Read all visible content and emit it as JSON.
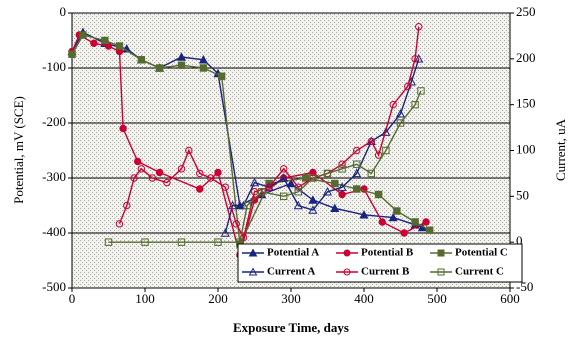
{
  "chart_data": {
    "type": "line",
    "xlabel": "Exposure Time, days",
    "ylabel": "Potential, mV (SCE)",
    "y2label": "Current, uA",
    "xlim": [
      0,
      600
    ],
    "xticks": [
      0,
      100,
      200,
      300,
      400,
      500,
      600
    ],
    "ylim": [
      -500,
      0
    ],
    "yticks": [
      -500,
      -400,
      -300,
      -200,
      -100,
      0
    ],
    "y2lim": [
      -50,
      250
    ],
    "y2ticks": [
      -50,
      0,
      50,
      100,
      150,
      200,
      250
    ],
    "grid": true,
    "legend": "lower right",
    "series": [
      {
        "name": "Potential A",
        "color": "#1a237e",
        "marker": "triangle",
        "filled": true,
        "x": [
          0,
          15,
          45,
          75,
          95,
          120,
          150,
          180,
          200,
          230,
          260,
          300,
          330,
          360,
          400,
          440,
          470,
          480
        ],
        "values": [
          -70,
          -35,
          -55,
          -65,
          -85,
          -100,
          -80,
          -85,
          -110,
          -350,
          -330,
          -310,
          -340,
          -355,
          -367,
          -372,
          -385,
          -390
        ]
      },
      {
        "name": "Potential B",
        "color": "#cc0033",
        "marker": "circle",
        "filled": true,
        "x": [
          0,
          10,
          30,
          50,
          65,
          70,
          90,
          120,
          175,
          200,
          230,
          250,
          290,
          330,
          370,
          400,
          425,
          455,
          485
        ],
        "values": [
          -70,
          -40,
          -55,
          -60,
          -70,
          -210,
          -270,
          -290,
          -320,
          -290,
          -440,
          -340,
          -300,
          -290,
          -330,
          -320,
          -380,
          -400,
          -380
        ]
      },
      {
        "name": "Potential C",
        "color": "#556b2f",
        "marker": "square",
        "filled": true,
        "x": [
          0,
          15,
          45,
          65,
          95,
          120,
          150,
          180,
          205,
          230,
          270,
          320,
          360,
          390,
          420,
          445,
          470,
          490
        ],
        "values": [
          -75,
          -40,
          -50,
          -60,
          -85,
          -100,
          -95,
          -100,
          -115,
          -420,
          -310,
          -300,
          -310,
          -320,
          -330,
          -360,
          -380,
          -395
        ]
      },
      {
        "name": "Current A",
        "color": "#1a237e",
        "marker": "triangle",
        "filled": false,
        "axis": "y2",
        "x": [
          210,
          220,
          235,
          250,
          270,
          290,
          310,
          330,
          350,
          370,
          390,
          410,
          430,
          450,
          465,
          475
        ],
        "values": [
          10,
          40,
          40,
          65,
          60,
          70,
          40,
          35,
          55,
          60,
          75,
          110,
          120,
          140,
          175,
          200
        ]
      },
      {
        "name": "Current B",
        "color": "#cc0033",
        "marker": "circle",
        "filled": false,
        "axis": "y2",
        "x": [
          65,
          75,
          85,
          95,
          110,
          130,
          150,
          160,
          175,
          190,
          210,
          225,
          235,
          250,
          270,
          290,
          310,
          330,
          350,
          370,
          390,
          410,
          420,
          440,
          460,
          470,
          475
        ],
        "values": [
          20,
          40,
          70,
          80,
          70,
          65,
          80,
          100,
          75,
          70,
          60,
          20,
          5,
          55,
          60,
          80,
          60,
          70,
          75,
          85,
          100,
          110,
          95,
          150,
          170,
          200,
          235
        ]
      },
      {
        "name": "Current C",
        "color": "#556b2f",
        "marker": "square",
        "filled": false,
        "axis": "y2",
        "x": [
          50,
          100,
          150,
          200,
          230,
          240,
          260,
          290,
          310,
          330,
          350,
          370,
          390,
          410,
          430,
          450,
          470,
          478
        ],
        "values": [
          0,
          0,
          0,
          0,
          0,
          40,
          55,
          50,
          55,
          70,
          75,
          80,
          85,
          75,
          100,
          130,
          150,
          165
        ]
      }
    ]
  }
}
